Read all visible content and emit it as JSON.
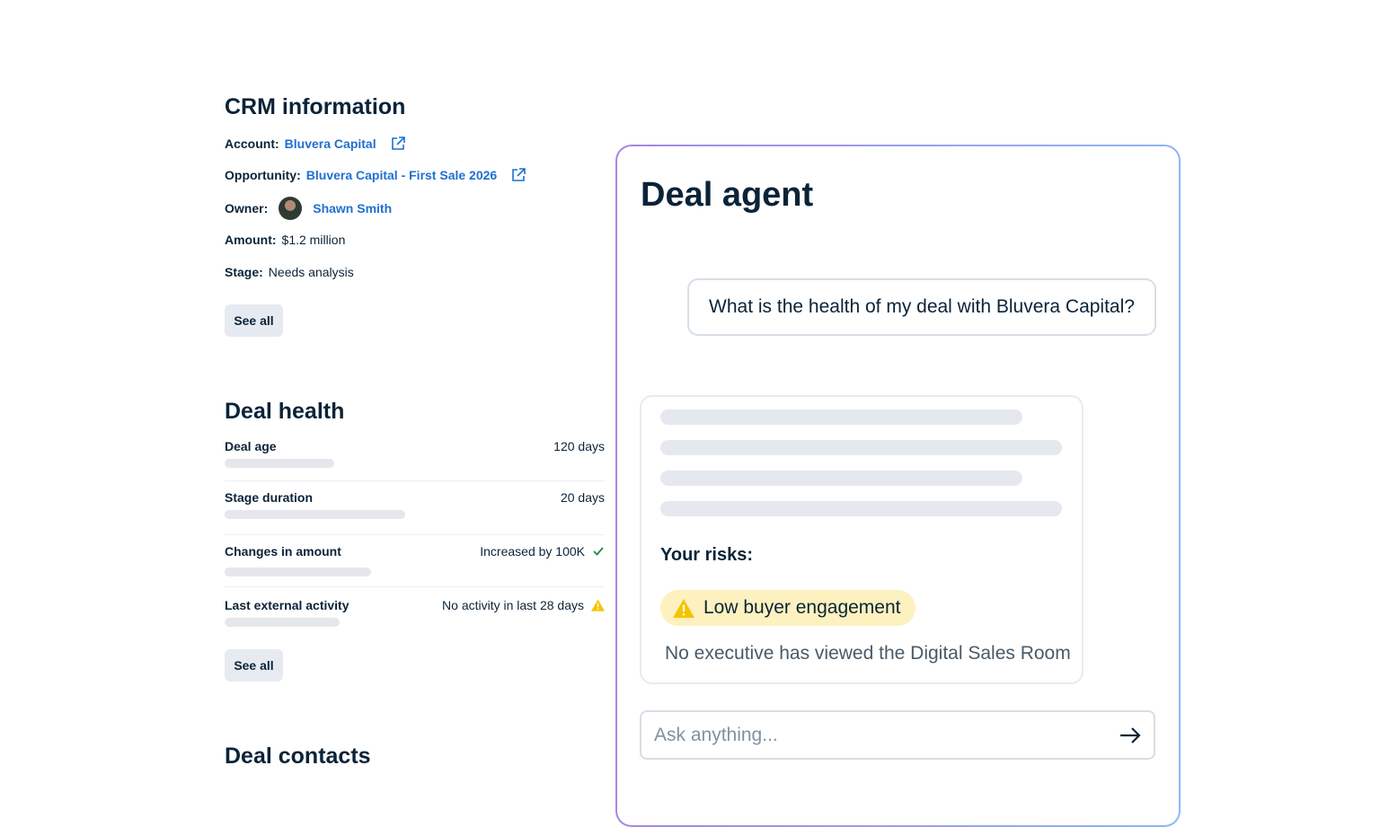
{
  "crm": {
    "title": "CRM information",
    "account_label": "Account:",
    "account_value": "Bluvera Capital",
    "opportunity_label": "Opportunity:",
    "opportunity_value": "Bluvera Capital - First Sale 2026",
    "owner_label": "Owner:",
    "owner_value": "Shawn Smith",
    "amount_label": "Amount:",
    "amount_value": "$1.2 million",
    "stage_label": "Stage:",
    "stage_value": "Needs analysis",
    "see_all": "See all"
  },
  "deal_health": {
    "title": "Deal health",
    "rows": [
      {
        "name": "Deal age",
        "value": "120 days"
      },
      {
        "name": "Stage duration",
        "value": "20 days"
      },
      {
        "name": "Changes in amount",
        "value": "Increased by 100K",
        "icon": "check-icon"
      },
      {
        "name": "Last external activity",
        "value": "No activity in last 28 days",
        "icon": "warning-icon"
      }
    ],
    "see_all": "See all"
  },
  "deal_contacts": {
    "title": "Deal contacts"
  },
  "agent": {
    "title": "Deal agent",
    "question": "What is the health of my deal with Bluvera Capital?",
    "risks_label": "Your risks:",
    "risk_pill": "Low buyer engagement",
    "risk_description": "No executive has viewed the Digital Sales Room",
    "input_placeholder": "Ask anything...",
    "send_icon": "arrow-right-icon"
  },
  "colors": {
    "link": "#1f6fd1",
    "warning": "#f5c400",
    "success": "#1f8a4c",
    "pill_bg": "#fdf1c0",
    "border_gradient": [
      "#a685e6",
      "#8fb6f5"
    ]
  }
}
